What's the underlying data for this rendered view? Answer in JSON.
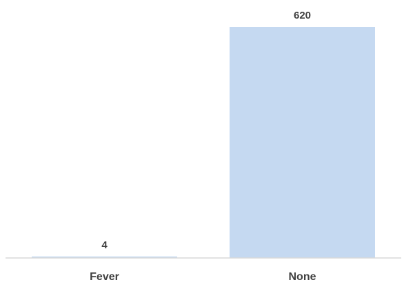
{
  "chart_data": {
    "type": "bar",
    "categories": [
      "Fever",
      "None"
    ],
    "values": [
      4,
      620
    ],
    "data_labels": [
      "4",
      "620"
    ],
    "title": "",
    "xlabel": "",
    "ylabel": "",
    "ylim": [
      0,
      620
    ],
    "grid": false,
    "legend": "none",
    "bar_color": "#c5d9f1",
    "axis_color": "#d9d9d9",
    "label_color": "#404040"
  }
}
